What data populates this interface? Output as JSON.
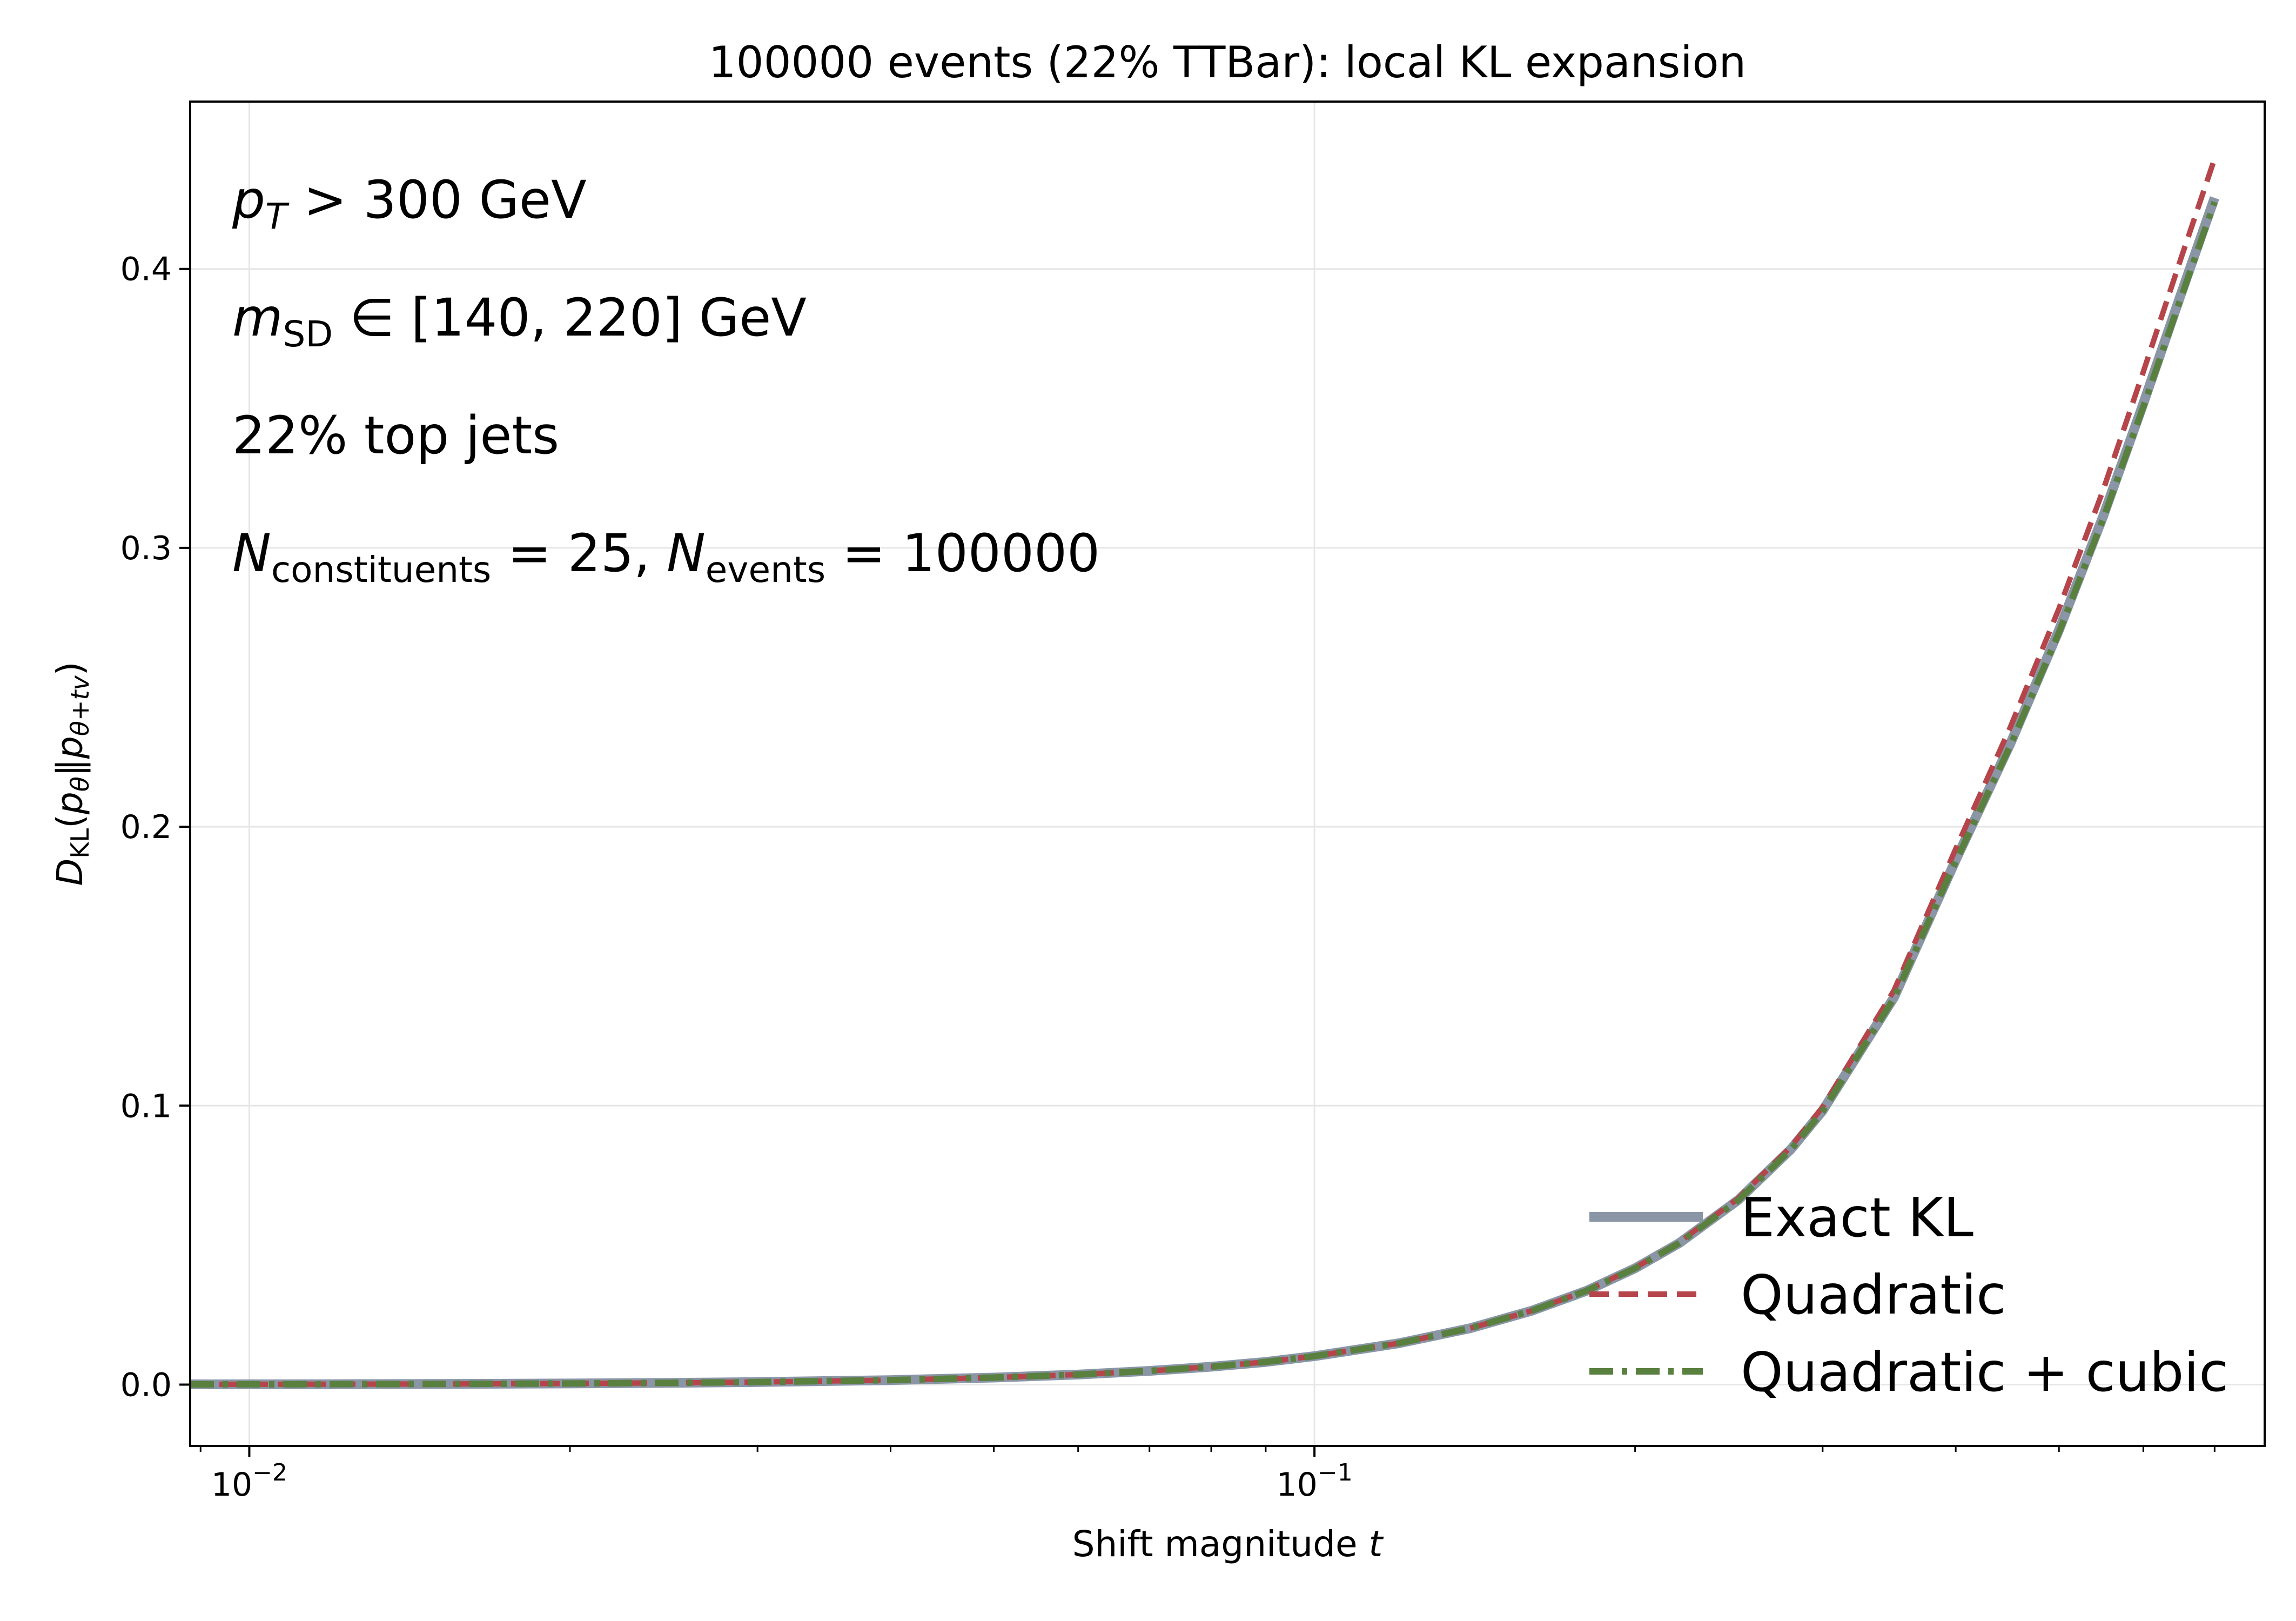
{
  "chart_data": {
    "type": "line",
    "title": "100000 events (22% TTBar): local KL expansion",
    "xlabel": {
      "main": "Shift magnitude ",
      "var": "t"
    },
    "ylabel": {
      "D": "D",
      "sub": "KL",
      "open": "(",
      "p1": "p",
      "s1": "θ",
      "mid": "‖",
      "p2": "p",
      "s2": "θ+tv",
      "close": ")"
    },
    "xscale": "log",
    "xlim": [
      0.0088,
      0.78
    ],
    "ylim": [
      -0.022,
      0.46
    ],
    "grid": true,
    "legend_position": "lower right",
    "x_ticks": [
      {
        "value": 0.01,
        "base": "10",
        "exp": "−2"
      },
      {
        "value": 0.1,
        "base": "10",
        "exp": "−1"
      }
    ],
    "y_ticks": [
      {
        "value": 0.0,
        "label": "0.0"
      },
      {
        "value": 0.1,
        "label": "0.1"
      },
      {
        "value": 0.2,
        "label": "0.2"
      },
      {
        "value": 0.3,
        "label": "0.3"
      },
      {
        "value": 0.4,
        "label": "0.4"
      }
    ],
    "annotations": [
      {
        "parts": [
          {
            "t": "p",
            "i": true
          },
          {
            "t": "T",
            "sub": true,
            "i": true
          },
          {
            "t": " > 300 GeV"
          }
        ]
      },
      {
        "parts": [
          {
            "t": "m",
            "i": true
          },
          {
            "t": "SD",
            "sub": true
          },
          {
            "t": " ∈ [140, 220] GeV"
          }
        ]
      },
      {
        "parts": [
          {
            "t": "22% top jets"
          }
        ]
      },
      {
        "parts": [
          {
            "t": "N",
            "i": true
          },
          {
            "t": "constituents",
            "sub": true
          },
          {
            "t": " = 25, "
          },
          {
            "t": "N",
            "i": true
          },
          {
            "t": "events",
            "sub": true
          },
          {
            "t": " = 100000"
          }
        ]
      }
    ],
    "x": [
      0.0088,
      0.01,
      0.012,
      0.015,
      0.02,
      0.025,
      0.03,
      0.04,
      0.05,
      0.06,
      0.07,
      0.08,
      0.09,
      0.1,
      0.12,
      0.14,
      0.16,
      0.18,
      0.2,
      0.22,
      0.25,
      0.28,
      0.3,
      0.35,
      0.4,
      0.45,
      0.5,
      0.55,
      0.6,
      0.65,
      0.7
    ],
    "series": [
      {
        "name": "Exact KL",
        "color": "#8a96a6",
        "style": "solid",
        "values": [
          8e-05,
          0.0001,
          0.00015,
          0.00023,
          0.0004,
          0.00063,
          0.0009,
          0.0016,
          0.0025,
          0.0036,
          0.0049,
          0.0064,
          0.0081,
          0.0102,
          0.0148,
          0.0202,
          0.0265,
          0.0336,
          0.0417,
          0.0507,
          0.0662,
          0.0843,
          0.0982,
          0.1388,
          0.1881,
          0.2297,
          0.2705,
          0.3112,
          0.3517,
          0.3903,
          0.4255
        ]
      },
      {
        "name": "Quadratic",
        "color": "#b5454a",
        "style": "dashed",
        "values": [
          8e-05,
          0.0001,
          0.00015,
          0.00023,
          0.0004,
          0.00063,
          0.0009,
          0.0016,
          0.0025,
          0.0036,
          0.0049,
          0.0064,
          0.0081,
          0.0102,
          0.0148,
          0.0202,
          0.0265,
          0.0337,
          0.0419,
          0.051,
          0.0668,
          0.0852,
          0.0995,
          0.1413,
          0.1921,
          0.2356,
          0.2782,
          0.3206,
          0.3631,
          0.4031,
          0.4395
        ]
      },
      {
        "name": "Quadratic + cubic",
        "color": "#5a8040",
        "style": "dashdot",
        "values": [
          8e-05,
          0.0001,
          0.00015,
          0.00023,
          0.0004,
          0.00063,
          0.0009,
          0.0016,
          0.0025,
          0.0036,
          0.0049,
          0.0064,
          0.0081,
          0.0102,
          0.0148,
          0.0202,
          0.0265,
          0.0336,
          0.0417,
          0.0507,
          0.0661,
          0.0842,
          0.098,
          0.1385,
          0.1876,
          0.229,
          0.2696,
          0.3102,
          0.3505,
          0.389,
          0.424
        ]
      }
    ]
  }
}
